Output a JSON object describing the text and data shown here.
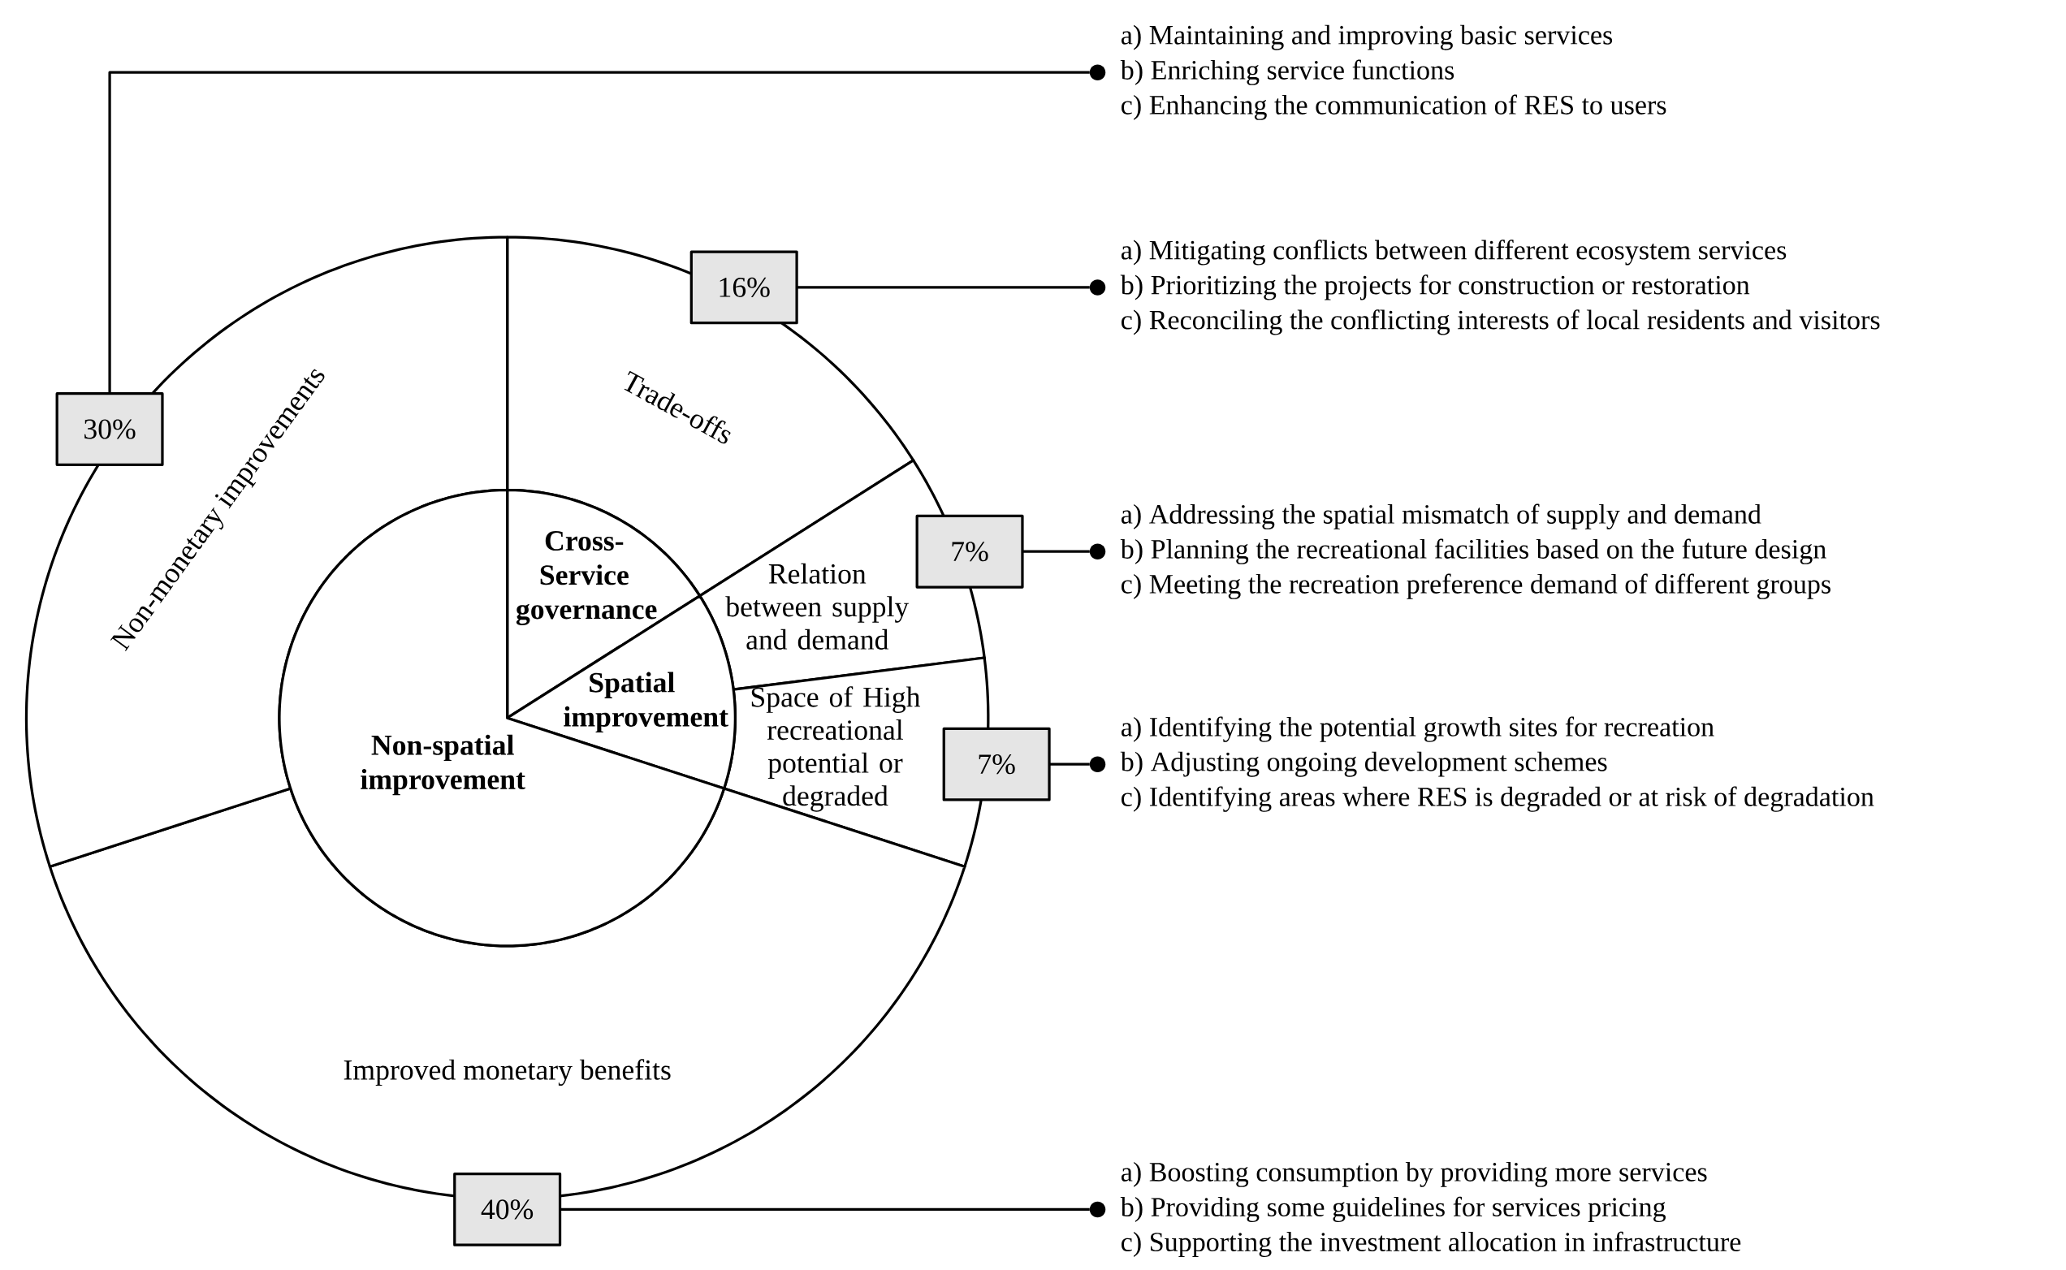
{
  "chart_data": [
    {
      "type": "donut",
      "categories": [
        "Trade-offs",
        "Relation between supply and demand",
        "Space of High recreational potential or degraded",
        "Improved monetary benefits",
        "Non-monetary improvements"
      ],
      "values": [
        16,
        7,
        7,
        40,
        30
      ],
      "value_labels": [
        "16%",
        "7%",
        "7%",
        "40%",
        "30%"
      ],
      "colors": [
        "#ffffff",
        "#ffffff",
        "#ffffff",
        "#ffffff",
        "#ffffff"
      ],
      "annotations": [
        {
          "text": "a) Maintaining and improving basic services",
          "x": "Non-monetary improvements"
        },
        {
          "text": "b) Enriching service functions",
          "x": "Non-monetary improvements"
        },
        {
          "text": "c) Enhancing the communication of RES to users",
          "x": "Non-monetary improvements"
        },
        {
          "text": "a) Mitigating conflicts between different ecosystem services",
          "x": "Trade-offs"
        },
        {
          "text": "b) Prioritizing the projects for construction or restoration",
          "x": "Trade-offs"
        },
        {
          "text": "c) Reconciling the conflicting interests of local residents and visitors",
          "x": "Trade-offs"
        },
        {
          "text": "a) Addressing the spatial mismatch of supply and demand",
          "x": "Relation between supply and demand"
        },
        {
          "text": "b) Planning the recreational facilities based on the future design",
          "x": "Relation between supply and demand"
        },
        {
          "text": "c) Meeting the recreation preference demand of different groups",
          "x": "Relation between supply and demand"
        },
        {
          "text": "a) Identifying the potential growth sites for recreation",
          "x": "Space of High recreational potential or degraded"
        },
        {
          "text": "b) Adjusting ongoing development schemes",
          "x": "Space of High recreational potential or degraded"
        },
        {
          "text": "c) Identifying areas where RES is degraded or at risk of degradation",
          "x": "Space of High recreational potential or degraded"
        },
        {
          "text": "a) Boosting consumption by providing more services",
          "x": "Improved monetary benefits"
        },
        {
          "text": "b) Providing some guidelines for services pricing",
          "x": "Improved monetary benefits"
        },
        {
          "text": "c) Supporting the investment allocation in infrastructure",
          "x": "Improved monetary benefits"
        }
      ]
    },
    {
      "type": "pie",
      "categories": [
        "Cross-Service governance",
        "Spatial improvement",
        "Non-spatial improvement"
      ],
      "values": [
        16,
        14,
        70
      ],
      "colors": [
        "#ffffff",
        "#ffffff",
        "#ffffff"
      ]
    }
  ]
}
